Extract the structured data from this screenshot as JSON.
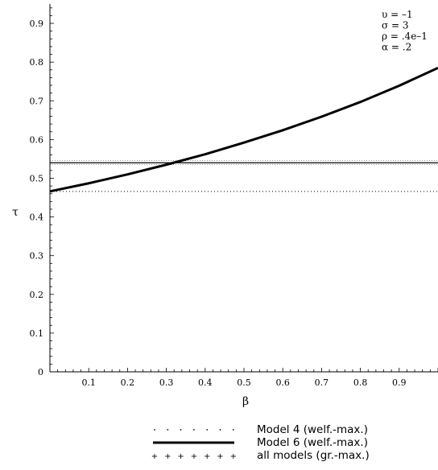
{
  "chart_data": {
    "type": "line",
    "xlabel": "β",
    "ylabel": "τ",
    "xlim": [
      0,
      1
    ],
    "ylim": [
      0,
      0.95
    ],
    "x_ticks": [
      "0.1",
      "0.2",
      "0.3",
      "0.4",
      "0.5",
      "0.6",
      "0.7",
      "0.8",
      "0.9"
    ],
    "y_ticks": [
      "0",
      "0.1",
      "0.2",
      "0.3",
      "0.4",
      "0.5",
      "0.6",
      "0.7",
      "0.8",
      "0.9"
    ],
    "parameters": [
      "υ = –1",
      "σ = 3",
      "ρ = .4e–1",
      "α = .2"
    ],
    "series": [
      {
        "name": "Model 4 (welf.-max.)",
        "style": "dotted",
        "x": [
          0,
          1
        ],
        "y": [
          0.466,
          0.466
        ]
      },
      {
        "name": "Model 6 (welf.-max.)",
        "style": "solid",
        "x": [
          0,
          0.1,
          0.2,
          0.3,
          0.4,
          0.5,
          0.6,
          0.7,
          0.8,
          0.9,
          1.0
        ],
        "y": [
          0.466,
          0.487,
          0.51,
          0.535,
          0.562,
          0.592,
          0.624,
          0.659,
          0.697,
          0.739,
          0.785
        ]
      },
      {
        "name": "all models (gr.-max.)",
        "style": "cross",
        "x": [
          0,
          1
        ],
        "y": [
          0.54,
          0.54
        ]
      }
    ],
    "legend_position": "bottom",
    "grid": false
  }
}
